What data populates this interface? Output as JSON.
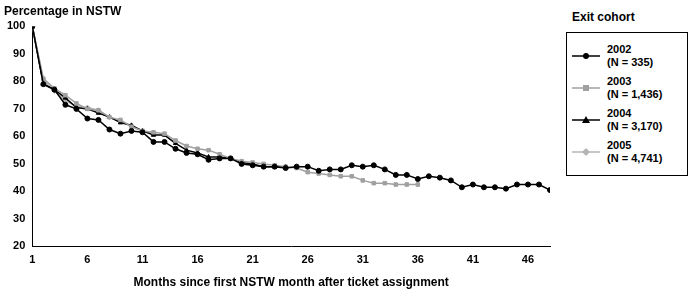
{
  "chart_data": {
    "type": "line",
    "y_label": "Percentage in NSTW",
    "x_label": "Months since first NSTW month after ticket assignment",
    "legend_title": "Exit cohort",
    "legend": "right",
    "grid": false,
    "x": [
      1,
      2,
      3,
      4,
      5,
      6,
      7,
      8,
      9,
      10,
      11,
      12,
      13,
      14,
      15,
      16,
      17,
      18,
      19,
      20,
      21,
      22,
      23,
      24,
      25,
      26,
      27,
      28,
      29,
      30,
      31,
      32,
      33,
      34,
      35,
      36,
      37,
      38,
      39,
      40,
      41,
      42,
      43,
      44,
      45,
      46,
      47,
      48
    ],
    "xlim": [
      1,
      48
    ],
    "xticks": [
      1,
      6,
      11,
      16,
      21,
      26,
      31,
      36,
      41,
      46
    ],
    "ylim": [
      20,
      100
    ],
    "yticks": [
      20,
      30,
      40,
      50,
      60,
      70,
      80,
      90,
      100
    ],
    "series": [
      {
        "name": "2002 (N = 335)",
        "color": "#000000",
        "marker": "circle",
        "values": [
          100,
          79,
          77,
          71.5,
          70,
          66.5,
          66,
          62.5,
          61,
          62,
          61.5,
          58,
          58,
          55.5,
          54,
          53.5,
          51.5,
          52,
          52,
          50,
          49.5,
          49,
          49,
          48.5,
          49,
          49,
          47.5,
          48,
          48,
          49.5,
          49,
          49.5,
          48,
          46,
          46,
          44.5,
          45.5,
          45,
          44,
          41.5,
          42.5,
          41.5,
          41.5,
          41,
          42.5,
          42.5,
          42.5,
          40.5
        ]
      },
      {
        "name": "2003 (N = 1,436)",
        "color": "#a0a0a0",
        "marker": "square",
        "values": [
          100,
          81,
          77.5,
          75,
          72,
          70,
          69.5,
          67,
          66,
          63.5,
          62,
          61.5,
          61,
          58.5,
          56.5,
          55.5,
          55,
          53.5,
          52,
          51,
          50.5,
          50,
          49.5,
          49,
          48.5,
          47,
          46.5,
          46,
          45.5,
          45.5,
          44,
          43,
          43,
          42.5,
          42.5,
          42.5,
          null,
          null,
          null,
          null,
          null,
          null,
          null,
          null,
          null,
          null,
          null,
          null
        ]
      },
      {
        "name": "2004 (N = 3,170)",
        "color": "#000000",
        "marker": "triangle",
        "values": [
          100,
          79,
          77,
          74,
          70.5,
          70,
          68.5,
          67,
          65,
          64,
          62,
          60.5,
          60.5,
          57.5,
          55,
          54,
          52.5,
          52.5,
          52,
          50.5,
          50,
          49,
          49,
          49,
          null,
          null,
          null,
          null,
          null,
          null,
          null,
          null,
          null,
          null,
          null,
          null,
          null,
          null,
          null,
          null,
          null,
          null,
          null,
          null,
          null,
          null,
          null,
          null
        ]
      },
      {
        "name": "2005 (N = 4,741)",
        "color": "#b4b4b4",
        "marker": "diamond",
        "values": [
          100,
          80.5,
          76.5,
          73,
          71,
          70.5,
          69.5,
          67,
          65.5,
          64,
          62,
          61,
          null,
          null,
          null,
          null,
          null,
          null,
          null,
          null,
          null,
          null,
          null,
          null,
          null,
          null,
          null,
          null,
          null,
          null,
          null,
          null,
          null,
          null,
          null,
          null,
          null,
          null,
          null,
          null,
          null,
          null,
          null,
          null,
          null,
          null,
          null,
          null
        ]
      }
    ]
  }
}
